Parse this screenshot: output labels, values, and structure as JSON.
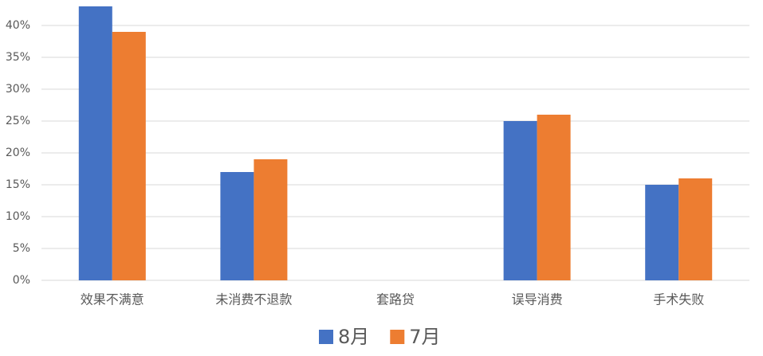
{
  "chart_data": {
    "type": "bar",
    "categories": [
      "效果不满意",
      "未消费不退款",
      "套路贷",
      "误导消费",
      "手术失败"
    ],
    "series": [
      {
        "name": "8月",
        "color": "#4472c4",
        "values": [
          43,
          17,
          0,
          25,
          15
        ]
      },
      {
        "name": "7月",
        "color": "#ed7d31",
        "values": [
          39,
          19,
          0,
          26,
          16
        ]
      }
    ],
    "ylim": [
      0,
      44
    ],
    "yticks": [
      {
        "value": 0,
        "label": "0%"
      },
      {
        "value": 5,
        "label": "5%"
      },
      {
        "value": 10,
        "label": "10%"
      },
      {
        "value": 15,
        "label": "15%"
      },
      {
        "value": 20,
        "label": "20%"
      },
      {
        "value": 25,
        "label": "25%"
      },
      {
        "value": 30,
        "label": "30%"
      },
      {
        "value": 35,
        "label": "35%"
      },
      {
        "value": 40,
        "label": "40%"
      }
    ],
    "grid": true,
    "legend": "bottom"
  }
}
